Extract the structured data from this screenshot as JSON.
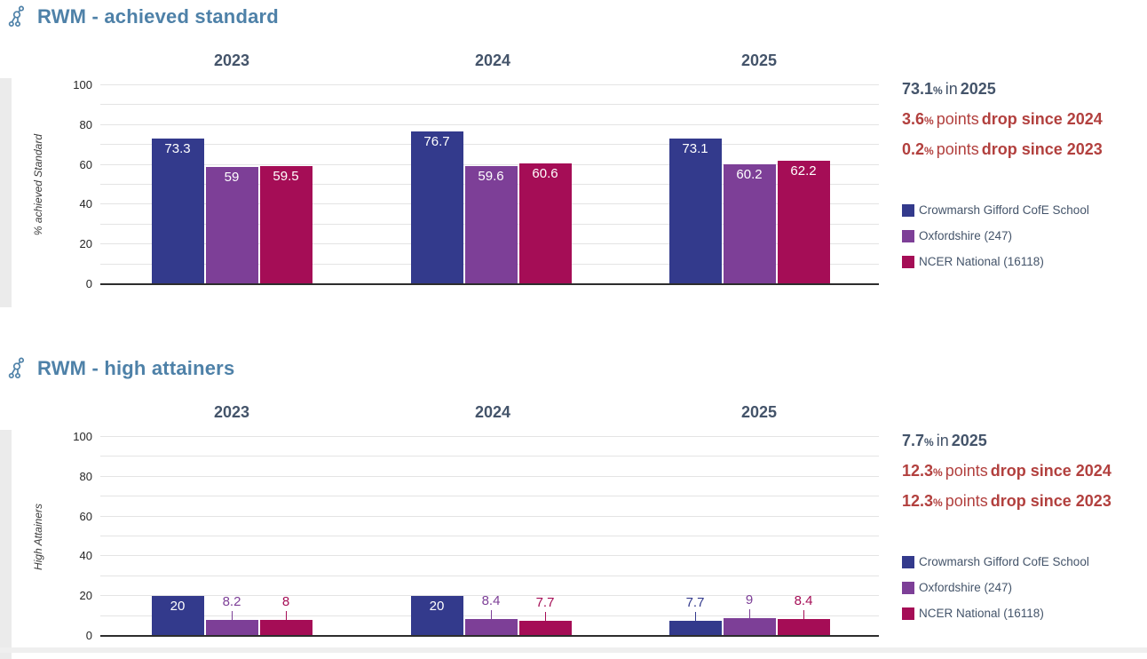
{
  "colors": {
    "section_title": "#4e81a8",
    "headline_text": "#44546a",
    "change_text": "#b2403e",
    "series_school": "#333a8c",
    "series_authority": "#7d3f97",
    "series_national": "#a50d56"
  },
  "chart_data": [
    {
      "type": "bar",
      "icon": "hierarchy-icon",
      "title": "RWM - achieved standard",
      "ylabel": "% achieved Standard",
      "xlabel": "",
      "ylim": [
        0,
        100
      ],
      "yticks": [
        0,
        20,
        40,
        60,
        80,
        100
      ],
      "minor_grid_step": 10,
      "grid": "horizontal",
      "legend_position": "right",
      "categories": [
        "2023",
        "2024",
        "2025"
      ],
      "series": [
        {
          "name": "Crowmarsh Gifford CofE School",
          "color": "#333a8c",
          "values": [
            73.3,
            76.7,
            73.1
          ],
          "value_labels": [
            "73.3",
            "76.7",
            "73.1"
          ]
        },
        {
          "name": "Oxfordshire (247)",
          "color": "#7d3f97",
          "values": [
            59,
            59.6,
            60.2
          ],
          "value_labels": [
            "59",
            "59.6",
            "60.2"
          ]
        },
        {
          "name": "NCER National (16118)",
          "color": "#a50d56",
          "values": [
            59.5,
            60.6,
            62.2
          ],
          "value_labels": [
            "59.5",
            "60.6",
            "62.2"
          ]
        }
      ],
      "summary": {
        "headline": {
          "value": "73.1",
          "unit": "%",
          "connector": "in",
          "year": "2025"
        },
        "changes": [
          {
            "value": "3.6",
            "unit": "%",
            "connector": "points",
            "description": "drop since 2024"
          },
          {
            "value": "0.2",
            "unit": "%",
            "connector": "points",
            "description": "drop since 2023"
          }
        ]
      }
    },
    {
      "type": "bar",
      "icon": "hierarchy-icon",
      "title": "RWM - high attainers",
      "ylabel": "High Attainers",
      "xlabel": "",
      "ylim": [
        0,
        100
      ],
      "yticks": [
        0,
        20,
        40,
        60,
        80,
        100
      ],
      "minor_grid_step": 10,
      "grid": "horizontal",
      "legend_position": "right",
      "categories": [
        "2023",
        "2024",
        "2025"
      ],
      "series": [
        {
          "name": "Crowmarsh Gifford CofE School",
          "color": "#333a8c",
          "values": [
            20,
            20,
            7.7
          ],
          "value_labels": [
            "20",
            "20",
            "7.7"
          ]
        },
        {
          "name": "Oxfordshire (247)",
          "color": "#7d3f97",
          "values": [
            8.2,
            8.4,
            9
          ],
          "value_labels": [
            "8.2",
            "8.4",
            "9"
          ]
        },
        {
          "name": "NCER National (16118)",
          "color": "#a50d56",
          "values": [
            8,
            7.7,
            8.4
          ],
          "value_labels": [
            "8",
            "7.7",
            "8.4"
          ]
        }
      ],
      "summary": {
        "headline": {
          "value": "7.7",
          "unit": "%",
          "connector": "in",
          "year": "2025"
        },
        "changes": [
          {
            "value": "12.3",
            "unit": "%",
            "connector": "points",
            "description": "drop since 2024"
          },
          {
            "value": "12.3",
            "unit": "%",
            "connector": "points",
            "description": "drop since 2023"
          }
        ]
      }
    }
  ]
}
